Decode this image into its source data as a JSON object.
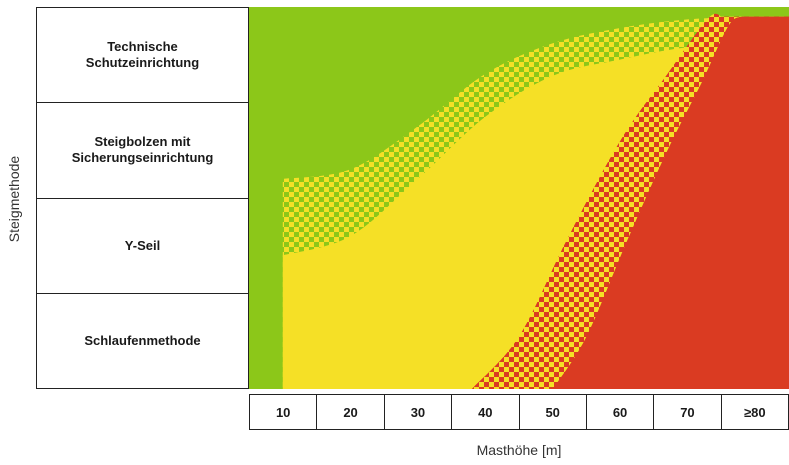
{
  "chart_data": {
    "type": "area",
    "xlabel": "Masthöhe [m]",
    "ylabel": "Steigmethode",
    "x_ticks": [
      "10",
      "20",
      "30",
      "40",
      "50",
      "60",
      "70",
      "≥80"
    ],
    "categories": [
      "Technische\nSchutzeinrichtung",
      "Steigbolzen mit\nSicherungseinrichtung",
      "Y-Seil",
      "Schlaufenmethode"
    ],
    "colors": {
      "green": "#8cc719",
      "yellow": "#f5e026",
      "red": "#da3b22"
    },
    "boundaries": [
      {
        "between": "green / yellow (hatched transition)",
        "lower_edge": [
          [
            10,
            2.2
          ],
          [
            20,
            2.3
          ],
          [
            30,
            2.75
          ],
          [
            40,
            3.3
          ],
          [
            50,
            3.62
          ],
          [
            60,
            3.78
          ],
          [
            70,
            3.87
          ],
          [
            80,
            3.9
          ]
        ],
        "upper_edge": [
          [
            10,
            1.4
          ],
          [
            20,
            1.6
          ],
          [
            30,
            2.2
          ],
          [
            40,
            2.85
          ],
          [
            50,
            3.28
          ],
          [
            60,
            3.45
          ],
          [
            70,
            3.58
          ],
          [
            80,
            3.62
          ]
        ]
      },
      {
        "between": "yellow / red (hatched transition)",
        "lower_edge": [
          [
            38,
            0.0
          ],
          [
            45,
            0.55
          ],
          [
            52,
            1.55
          ],
          [
            60,
            2.6
          ],
          [
            67,
            3.3
          ],
          [
            73,
            3.88
          ],
          [
            75,
            3.9
          ]
        ],
        "upper_edge": [
          [
            50,
            0.0
          ],
          [
            55,
            0.55
          ],
          [
            61,
            1.55
          ],
          [
            67,
            2.5
          ],
          [
            72,
            3.2
          ],
          [
            76,
            3.8
          ],
          [
            78,
            3.9
          ]
        ]
      }
    ]
  }
}
